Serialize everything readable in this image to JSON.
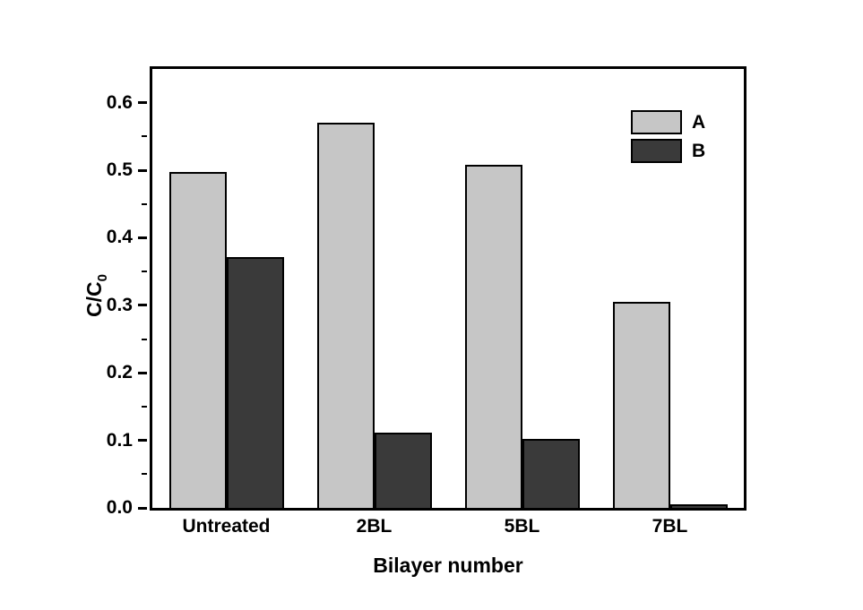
{
  "chart_data": {
    "type": "bar",
    "title": "",
    "xlabel": "Bilayer number",
    "ylabel": "C/C",
    "ylabel_subscript": "0",
    "categories": [
      "Untreated",
      "2BL",
      "5BL",
      "7BL"
    ],
    "series": [
      {
        "name": "A",
        "color": "#c6c6c6",
        "values": [
          0.497,
          0.571,
          0.508,
          0.305
        ]
      },
      {
        "name": "B",
        "color": "#3a3a3a",
        "values": [
          0.372,
          0.111,
          0.102,
          0.005
        ]
      }
    ],
    "ylim": [
      0,
      0.65
    ],
    "ytick_step": 0.1,
    "ytick_minor_step": 0.05,
    "ytick_labels": [
      "0.0",
      "0.1",
      "0.2",
      "0.3",
      "0.4",
      "0.5",
      "0.6"
    ],
    "grid": false,
    "legend_position": "top-right",
    "bar_border_color": "#000000",
    "axis_color": "#000000",
    "background_color": "#ffffff"
  }
}
